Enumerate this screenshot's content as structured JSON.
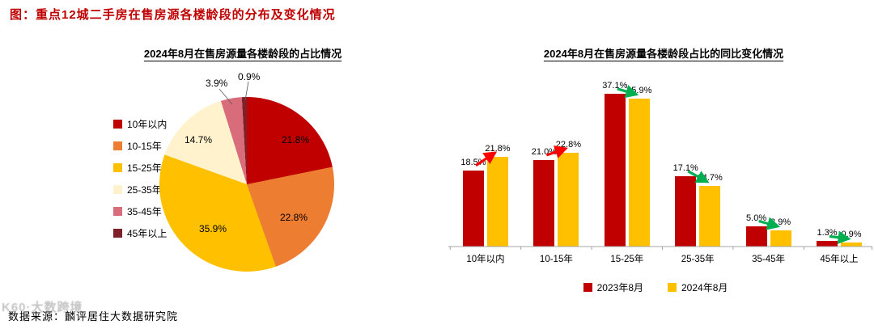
{
  "figure": {
    "title": "图：重点12城二手房在售房源各楼龄段的分布及变化情况",
    "source": "数据来源：麟评居住大数据研究院",
    "watermark": "K60·大数跨境"
  },
  "colors": {
    "title_red": "#BF0000",
    "axis_gray": "#A6A6A6",
    "up_arrow": "#FF0000",
    "down_arrow": "#00B050"
  },
  "chart_data": [
    {
      "type": "pie",
      "title": "2024年8月在售房源量各楼龄段的占比情况",
      "labels": [
        "10年以内",
        "10-15年",
        "15-25年",
        "25-35年",
        "35-45年",
        "45年以上"
      ],
      "values": [
        21.8,
        22.8,
        35.9,
        14.7,
        3.9,
        0.9
      ],
      "colors": [
        "#C00000",
        "#ED7D31",
        "#FFC000",
        "#FFF2CC",
        "#D96C7B",
        "#7E2029"
      ],
      "legend_position": "left",
      "label_format": "percent",
      "start_angle": "top-clockwise"
    },
    {
      "type": "bar",
      "title": "2024年8月在售房源量各楼龄段占比的同比变化情况",
      "categories": [
        "10年以内",
        "10-15年",
        "15-25年",
        "25-35年",
        "35-45年",
        "45年以上"
      ],
      "series": [
        {
          "name": "2023年8月",
          "color": "#C00000",
          "values": [
            18.5,
            21.0,
            37.1,
            17.1,
            5.0,
            1.3
          ]
        },
        {
          "name": "2024年8月",
          "color": "#FFC000",
          "values": [
            21.8,
            22.8,
            35.9,
            14.7,
            3.9,
            0.9
          ]
        }
      ],
      "trends": [
        "up",
        "up",
        "down",
        "down",
        "down",
        "down"
      ],
      "ylim": [
        0,
        40
      ],
      "grid": false,
      "legend_position": "bottom",
      "value_labels": true
    }
  ]
}
